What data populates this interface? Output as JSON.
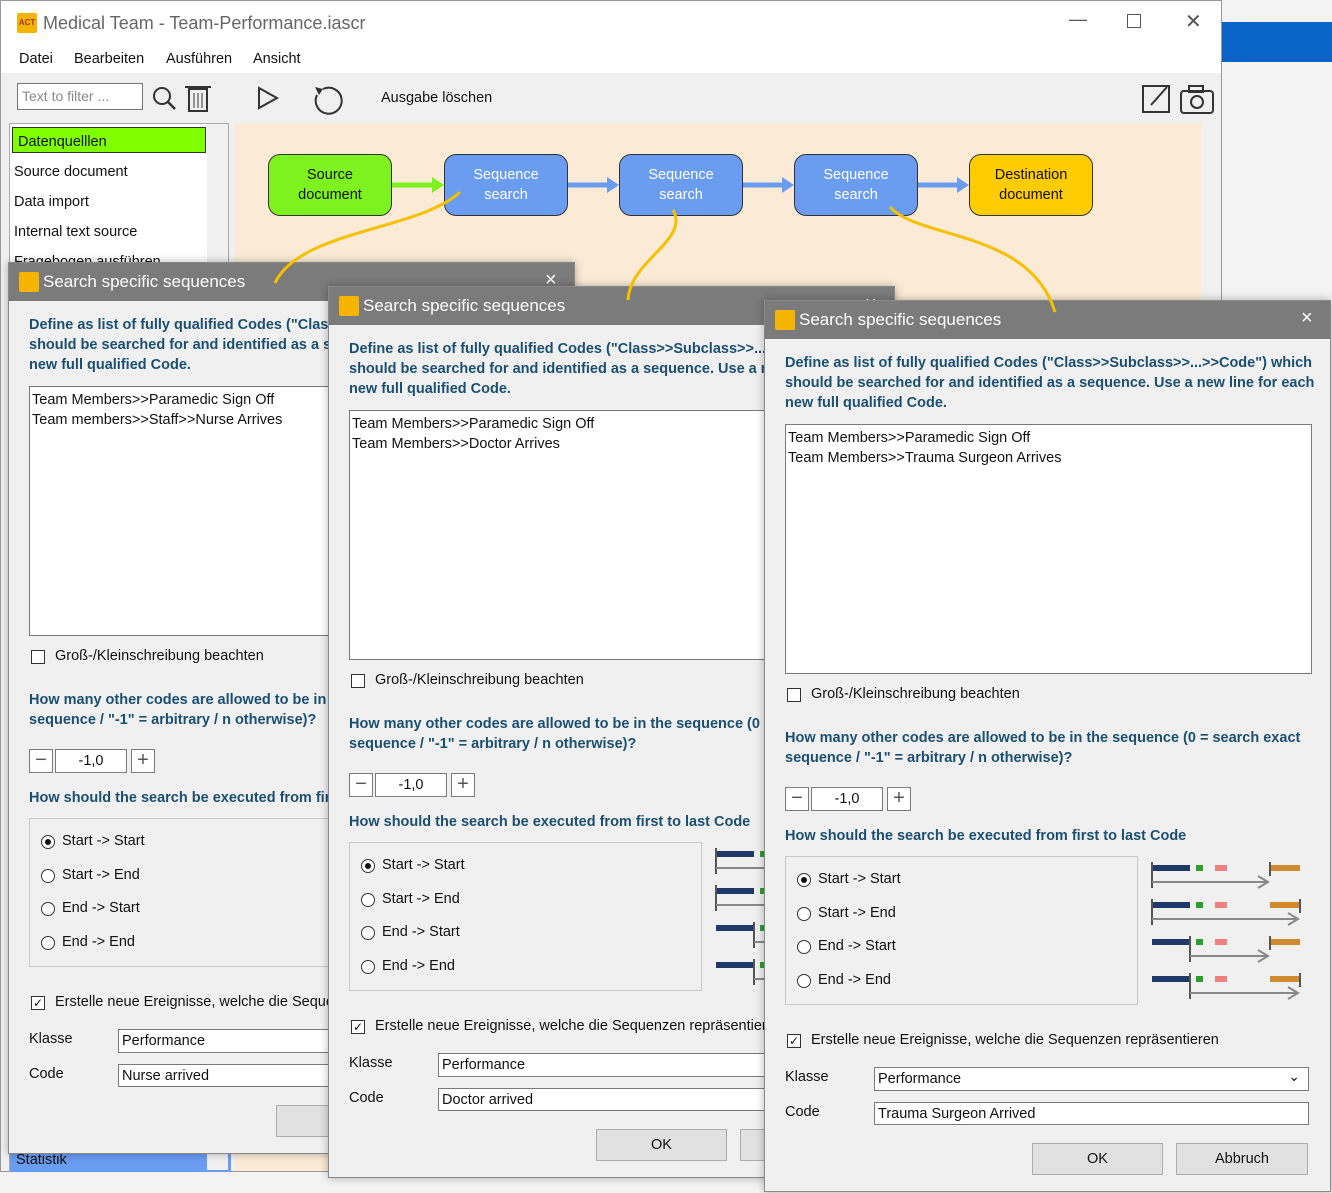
{
  "window": {
    "title": "Medical Team - Team-Performance.iascr",
    "menu": [
      "Datei",
      "Bearbeiten",
      "Ausführen",
      "Ansicht"
    ],
    "filter_placeholder": "Text to filter ...",
    "clear_output": "Ausgabe löschen"
  },
  "sidebar": {
    "items": [
      "Datenquelllen",
      "Source document",
      "Data import",
      "Internal text source",
      "Fragebogen ausführen"
    ],
    "bottom_item": "Statistik"
  },
  "flow": {
    "nodes": [
      {
        "label": "Source document",
        "color": "#7ef21e"
      },
      {
        "label": "Sequence search",
        "color": "#6a9cf2"
      },
      {
        "label": "Sequence search",
        "color": "#6a9cf2"
      },
      {
        "label": "Sequence search",
        "color": "#6a9cf2"
      },
      {
        "label": "Destination document",
        "color": "#ffcc00"
      }
    ]
  },
  "dialog_labels": {
    "title": "Search specific sequences",
    "instruction": "Define as list of fully qualified Codes (\"Class>>Subclass>>...>>Code\") which should be searched for and identified as a sequence. Use a new line for each new full qualified Code.",
    "case_label": "Groß-/Kleinschreibung beachten",
    "q_tolerance": "How many other codes are allowed to be in the sequence (0 = search exact sequence / \"-1\" = arbitrary / n otherwise)?",
    "q_mode": "How should the search be executed from first to last Code",
    "modes": [
      "Start -> Start",
      "Start -> End",
      "End -> Start",
      "End -> End"
    ],
    "create_label": "Erstelle neue Ereignisse, welche die Sequenzen repräsentieren",
    "klasse_label": "Klasse",
    "code_label": "Code",
    "ok": "OK",
    "cancel": "Abbruch"
  },
  "dialogs": [
    {
      "codes": [
        "Team Members>>Paramedic Sign Off",
        "Team members>>Staff>>Nurse Arrives"
      ],
      "tolerance": "-1,0",
      "case_sensitive": false,
      "selected_mode": 0,
      "create_events": true,
      "klasse": "Performance",
      "code": "Nurse arrived"
    },
    {
      "codes": [
        "Team Members>>Paramedic Sign Off",
        "Team Members>>Doctor Arrives"
      ],
      "tolerance": "-1,0",
      "case_sensitive": false,
      "selected_mode": 0,
      "create_events": true,
      "klasse": "Performance",
      "code": "Doctor arrived"
    },
    {
      "codes": [
        "Team Members>>Paramedic Sign Off",
        "Team Members>>Trauma Surgeon Arrives"
      ],
      "tolerance": "-1,0",
      "case_sensitive": false,
      "selected_mode": 0,
      "create_events": true,
      "klasse": "Performance",
      "code": "Trauma Surgeon Arrived"
    }
  ]
}
